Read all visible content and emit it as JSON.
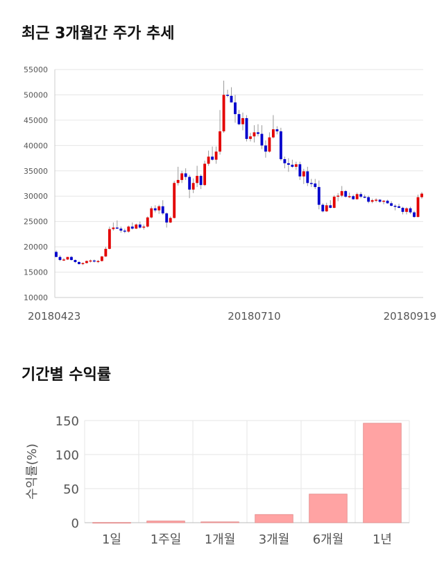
{
  "sections": {
    "price_title": "최근 3개월간 주가 추세",
    "returns_title": "기간별 수익률"
  },
  "colors": {
    "up": "#e30000",
    "down": "#0000cc",
    "wick": "#999999",
    "bar": "#ffa3a3",
    "bar_border": "#e08888"
  },
  "chart_data": [
    {
      "type": "candlestick",
      "title": "최근 3개월간 주가 추세",
      "ylim": [
        10000,
        55000
      ],
      "y_ticks": [
        10000,
        15000,
        20000,
        25000,
        30000,
        35000,
        40000,
        45000,
        50000,
        55000
      ],
      "x_tick_labels": [
        {
          "label": "20180423",
          "index": 0
        },
        {
          "label": "20180710",
          "index": 52
        },
        {
          "label": "20180919",
          "index": 104
        }
      ],
      "grid": true,
      "ohlc": [
        [
          19000,
          19300,
          18000,
          18000
        ],
        [
          18000,
          18300,
          17200,
          17400
        ],
        [
          17400,
          17800,
          17200,
          17500
        ],
        [
          17500,
          18000,
          17400,
          18000
        ],
        [
          18000,
          18200,
          17300,
          17400
        ],
        [
          17400,
          17500,
          16800,
          17000
        ],
        [
          17000,
          17200,
          16500,
          16600
        ],
        [
          16600,
          16900,
          16400,
          16800
        ],
        [
          16800,
          17300,
          16700,
          17200
        ],
        [
          17200,
          17500,
          16900,
          17300
        ],
        [
          17300,
          17500,
          16900,
          17100
        ],
        [
          17100,
          17400,
          16800,
          17200
        ],
        [
          17200,
          18200,
          17100,
          18100
        ],
        [
          18100,
          20000,
          18000,
          19600
        ],
        [
          19600,
          24000,
          19500,
          23500
        ],
        [
          23500,
          24800,
          23200,
          23800
        ],
        [
          23800,
          25200,
          23500,
          23600
        ],
        [
          23600,
          24000,
          22800,
          23200
        ],
        [
          23200,
          23600,
          22700,
          23000
        ],
        [
          23000,
          24200,
          22800,
          24000
        ],
        [
          24000,
          24800,
          23400,
          23600
        ],
        [
          23600,
          24600,
          23500,
          24400
        ],
        [
          24400,
          25000,
          23600,
          23800
        ],
        [
          23800,
          24400,
          23400,
          24000
        ],
        [
          24000,
          26000,
          23800,
          25800
        ],
        [
          25800,
          28000,
          25600,
          27600
        ],
        [
          27600,
          28200,
          26800,
          27200
        ],
        [
          27200,
          28300,
          26500,
          28000
        ],
        [
          28000,
          29200,
          26300,
          26600
        ],
        [
          26600,
          26800,
          23800,
          24800
        ],
        [
          24800,
          26000,
          24700,
          25700
        ],
        [
          25700,
          33000,
          25600,
          32600
        ],
        [
          32600,
          35800,
          32100,
          33200
        ],
        [
          33200,
          35000,
          32600,
          34500
        ],
        [
          34500,
          35500,
          33200,
          33800
        ],
        [
          33800,
          34200,
          29600,
          31300
        ],
        [
          31300,
          33500,
          30600,
          32600
        ],
        [
          32600,
          36000,
          31800,
          34000
        ],
        [
          34000,
          34300,
          31400,
          32200
        ],
        [
          32200,
          37000,
          32000,
          36400
        ],
        [
          36400,
          39000,
          36000,
          37800
        ],
        [
          37800,
          39800,
          37000,
          37200
        ],
        [
          37200,
          39800,
          36400,
          38800
        ],
        [
          38800,
          47000,
          38200,
          42800
        ],
        [
          42800,
          52800,
          42500,
          50000
        ],
        [
          50000,
          51000,
          49500,
          49800
        ],
        [
          49800,
          51500,
          48500,
          48500
        ],
        [
          48500,
          50000,
          44500,
          46200
        ],
        [
          46200,
          47000,
          44000,
          44200
        ],
        [
          44200,
          46500,
          43000,
          45400
        ],
        [
          45400,
          46000,
          40800,
          41300
        ],
        [
          41300,
          42500,
          40800,
          41800
        ],
        [
          41800,
          44000,
          40600,
          42600
        ],
        [
          42600,
          44200,
          41800,
          42300
        ],
        [
          42300,
          44000,
          39300,
          40000
        ],
        [
          40000,
          41000,
          37600,
          38800
        ],
        [
          38800,
          42600,
          38600,
          41600
        ],
        [
          41600,
          46000,
          41400,
          43200
        ],
        [
          43200,
          43800,
          42200,
          42800
        ],
        [
          42800,
          43500,
          37000,
          37300
        ],
        [
          37300,
          37800,
          35500,
          36500
        ],
        [
          36500,
          37500,
          34800,
          36200
        ],
        [
          36200,
          37200,
          35600,
          35800
        ],
        [
          35800,
          36800,
          35200,
          36300
        ],
        [
          36300,
          36800,
          33200,
          33900
        ],
        [
          33900,
          35400,
          32400,
          34900
        ],
        [
          34900,
          35800,
          32000,
          32600
        ],
        [
          32600,
          33400,
          31800,
          32500
        ],
        [
          32500,
          33400,
          31400,
          31800
        ],
        [
          31800,
          33100,
          27400,
          28300
        ],
        [
          28300,
          28600,
          26800,
          27000
        ],
        [
          27000,
          28700,
          26900,
          28200
        ],
        [
          28200,
          29200,
          27600,
          27700
        ],
        [
          27700,
          30200,
          27600,
          29900
        ],
        [
          29900,
          30600,
          29000,
          30100
        ],
        [
          30100,
          32000,
          29800,
          31000
        ],
        [
          31000,
          31200,
          29700,
          29900
        ],
        [
          29900,
          30700,
          29600,
          30000
        ],
        [
          30000,
          30300,
          29300,
          29400
        ],
        [
          29400,
          30700,
          29300,
          30400
        ],
        [
          30400,
          30800,
          29600,
          29900
        ],
        [
          29900,
          30300,
          29600,
          29800
        ],
        [
          29800,
          30100,
          28600,
          28900
        ],
        [
          28900,
          29500,
          28600,
          29200
        ],
        [
          29200,
          29600,
          28800,
          29300
        ],
        [
          29300,
          29400,
          28700,
          28900
        ],
        [
          28900,
          29200,
          28400,
          29100
        ],
        [
          29100,
          29300,
          28500,
          28600
        ],
        [
          28600,
          29000,
          28000,
          28100
        ],
        [
          28100,
          28400,
          27200,
          28000
        ],
        [
          28000,
          28500,
          27600,
          27700
        ],
        [
          27700,
          27900,
          26400,
          26900
        ],
        [
          26900,
          27800,
          26400,
          27600
        ],
        [
          27600,
          27900,
          26500,
          26800
        ],
        [
          26800,
          27100,
          25700,
          25900
        ],
        [
          25900,
          30300,
          25800,
          29800
        ],
        [
          29800,
          30800,
          29500,
          30500
        ]
      ]
    },
    {
      "type": "bar",
      "title": "기간별 수익률",
      "ylabel": "수익률(%)",
      "ylim": [
        0,
        150
      ],
      "y_ticks": [
        0,
        50,
        100,
        150
      ],
      "categories": [
        "1일",
        "1주일",
        "1개월",
        "3개월",
        "6개월",
        "1년"
      ],
      "values": [
        0.3,
        2.5,
        1.2,
        12,
        42,
        146
      ],
      "grid": true
    }
  ]
}
